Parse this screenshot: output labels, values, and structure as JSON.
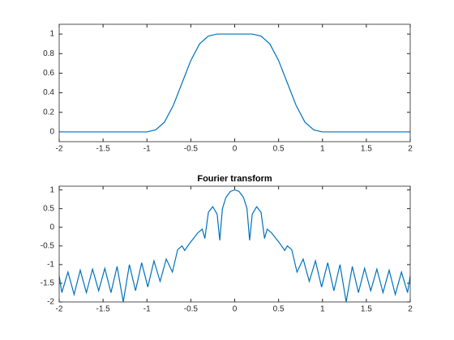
{
  "chart_data": [
    {
      "type": "line",
      "x": [
        -2,
        -1,
        -0.9,
        -0.8,
        -0.7,
        -0.6,
        -0.5,
        -0.4,
        -0.3,
        -0.2,
        -0.1,
        0,
        0.1,
        0.2,
        0.3,
        0.4,
        0.5,
        0.6,
        0.7,
        0.8,
        0.9,
        1,
        2
      ],
      "series": [
        {
          "color": "#0072bd",
          "values": [
            0,
            0,
            0.02,
            0.1,
            0.27,
            0.5,
            0.73,
            0.9,
            0.98,
            1,
            1,
            1,
            1,
            1,
            0.98,
            0.9,
            0.73,
            0.5,
            0.27,
            0.1,
            0.02,
            0,
            0
          ]
        }
      ],
      "xlim": [
        -2,
        2
      ],
      "ylim": [
        -0.1,
        1.1
      ],
      "xticks": [
        -2,
        -1.5,
        -1,
        -0.5,
        0,
        0.5,
        1,
        1.5,
        2
      ],
      "yticks": [
        0,
        0.2,
        0.4,
        0.6,
        0.8,
        1
      ]
    },
    {
      "type": "line",
      "title": "Fourier transform",
      "x": [
        -2,
        -1.97,
        -1.9,
        -1.83,
        -1.76,
        -1.69,
        -1.62,
        -1.55,
        -1.48,
        -1.41,
        -1.34,
        -1.27,
        -1.2,
        -1.13,
        -1.06,
        -0.99,
        -0.92,
        -0.85,
        -0.78,
        -0.71,
        -0.65,
        -0.6,
        -0.57,
        -0.52,
        -0.47,
        -0.42,
        -0.37,
        -0.34,
        -0.3,
        -0.25,
        -0.2,
        -0.17,
        -0.14,
        -0.1,
        -0.05,
        0,
        0.05,
        0.1,
        0.14,
        0.17,
        0.2,
        0.25,
        0.3,
        0.34,
        0.37,
        0.42,
        0.47,
        0.52,
        0.57,
        0.6,
        0.65,
        0.71,
        0.78,
        0.85,
        0.92,
        0.99,
        1.06,
        1.13,
        1.2,
        1.27,
        1.34,
        1.41,
        1.48,
        1.55,
        1.62,
        1.69,
        1.76,
        1.83,
        1.9,
        1.97,
        2
      ],
      "series": [
        {
          "color": "#0072bd",
          "values": [
            -1.3,
            -1.75,
            -1.2,
            -1.8,
            -1.15,
            -1.75,
            -1.12,
            -1.7,
            -1.1,
            -1.75,
            -1.05,
            -2,
            -1.0,
            -1.7,
            -0.95,
            -1.6,
            -0.9,
            -1.45,
            -0.85,
            -1.2,
            -0.6,
            -0.5,
            -0.62,
            -0.45,
            -0.3,
            -0.15,
            -0.05,
            -0.3,
            0.4,
            0.55,
            0.35,
            -0.35,
            0.5,
            0.8,
            0.96,
            1,
            0.96,
            0.8,
            0.5,
            -0.35,
            0.35,
            0.55,
            0.4,
            -0.3,
            -0.05,
            -0.15,
            -0.3,
            -0.45,
            -0.62,
            -0.5,
            -0.6,
            -1.2,
            -0.85,
            -1.45,
            -0.9,
            -1.6,
            -0.95,
            -1.7,
            -1.0,
            -2,
            -1.05,
            -1.75,
            -1.1,
            -1.7,
            -1.12,
            -1.75,
            -1.15,
            -1.8,
            -1.2,
            -1.75,
            -1.3
          ]
        }
      ],
      "xlim": [
        -2,
        2
      ],
      "ylim": [
        -2,
        1.1
      ],
      "xticks": [
        -2,
        -1.5,
        -1,
        -0.5,
        0,
        0.5,
        1,
        1.5,
        2
      ],
      "yticks": [
        -2,
        -1.5,
        -1,
        -0.5,
        0,
        0.5,
        1
      ]
    }
  ]
}
